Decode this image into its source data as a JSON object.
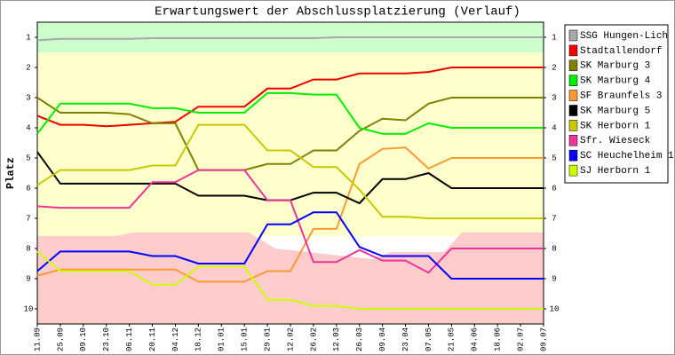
{
  "chart_data": {
    "type": "line",
    "title": "Erwartungswert der Abschlussplatzierung (Verlauf)",
    "y_label": "Platz",
    "categories": [
      "11.09",
      "25.09",
      "09.10",
      "23.10",
      "06.11",
      "20.11",
      "04.12",
      "18.12",
      "01.01",
      "15.01",
      "29.01",
      "12.02",
      "26.02",
      "12.03",
      "26.03",
      "09.04",
      "23.04",
      "07.05",
      "21.05",
      "04.06",
      "18.06",
      "02.07",
      "09.07"
    ],
    "ylim": [
      10.5,
      0.5
    ],
    "yticks": [
      1,
      2,
      3,
      4,
      5,
      6,
      7,
      8,
      9,
      10
    ],
    "series": [
      {
        "name": "SSG Hungen-Lich",
        "color": "#a8a8a8",
        "values": [
          1.1,
          1.05,
          1.05,
          1.05,
          1.05,
          1.03,
          1.03,
          1.03,
          1.03,
          1.03,
          1.03,
          1.03,
          1.03,
          1.0,
          1.0,
          1.0,
          1.0,
          1.0,
          1.0,
          1.0,
          1.0,
          1.0,
          1.0
        ]
      },
      {
        "name": "Stadtallendorf",
        "color": "#ee0000",
        "values": [
          3.6,
          3.9,
          3.9,
          3.95,
          3.9,
          3.85,
          3.8,
          3.3,
          3.3,
          3.3,
          2.7,
          2.7,
          2.4,
          2.4,
          2.2,
          2.2,
          2.2,
          2.15,
          2.0,
          2.0,
          2.0,
          2.0,
          2.0
        ]
      },
      {
        "name": "SK Marburg 3",
        "color": "#808000",
        "values": [
          3.0,
          3.5,
          3.5,
          3.5,
          3.55,
          3.85,
          3.85,
          5.4,
          5.4,
          5.4,
          5.2,
          5.2,
          4.75,
          4.75,
          4.1,
          3.7,
          3.75,
          3.2,
          3.0,
          3.0,
          3.0,
          3.0,
          3.0
        ]
      },
      {
        "name": "SK Marburg 4",
        "color": "#00ee00",
        "values": [
          4.2,
          3.2,
          3.2,
          3.2,
          3.2,
          3.35,
          3.35,
          3.5,
          3.5,
          3.5,
          2.85,
          2.85,
          2.9,
          2.9,
          4.0,
          4.2,
          4.2,
          3.85,
          4.0,
          4.0,
          4.0,
          4.0,
          4.0
        ]
      },
      {
        "name": "SF Braunfels 3",
        "color": "#ff9933",
        "values": [
          8.9,
          8.7,
          8.7,
          8.7,
          8.7,
          8.7,
          8.7,
          9.1,
          9.1,
          9.1,
          8.75,
          8.75,
          7.35,
          7.35,
          5.2,
          4.7,
          4.65,
          5.35,
          5.0,
          5.0,
          5.0,
          5.0,
          5.0
        ]
      },
      {
        "name": "SK Marburg 5",
        "color": "#000000",
        "values": [
          4.8,
          5.85,
          5.85,
          5.85,
          5.85,
          5.85,
          5.85,
          6.25,
          6.25,
          6.25,
          6.4,
          6.4,
          6.15,
          6.15,
          6.5,
          5.7,
          5.7,
          5.5,
          6.0,
          6.0,
          6.0,
          6.0,
          6.0
        ]
      },
      {
        "name": "SK Herborn 1",
        "color": "#c8c800",
        "values": [
          5.9,
          5.4,
          5.4,
          5.4,
          5.4,
          5.25,
          5.25,
          3.9,
          3.9,
          3.9,
          4.75,
          4.75,
          5.3,
          5.3,
          6.05,
          6.95,
          6.95,
          7.0,
          7.0,
          7.0,
          7.0,
          7.0,
          7.0
        ]
      },
      {
        "name": "Sfr. Wieseck",
        "color": "#ee3399",
        "values": [
          6.6,
          6.65,
          6.65,
          6.65,
          6.65,
          5.8,
          5.8,
          5.4,
          5.4,
          5.4,
          6.4,
          6.4,
          8.45,
          8.45,
          8.05,
          8.4,
          8.4,
          8.8,
          8.0,
          8.0,
          8.0,
          8.0,
          8.0
        ]
      },
      {
        "name": "SC Heuchelheim 1",
        "color": "#0000ff",
        "values": [
          8.75,
          8.1,
          8.1,
          8.1,
          8.1,
          8.25,
          8.25,
          8.5,
          8.5,
          8.5,
          7.2,
          7.2,
          6.8,
          6.8,
          7.95,
          8.25,
          8.25,
          8.25,
          9.0,
          9.0,
          9.0,
          9.0,
          9.0
        ]
      },
      {
        "name": "SJ Herborn 1",
        "color": "#ccff00",
        "values": [
          8.1,
          8.75,
          8.75,
          8.75,
          8.75,
          9.2,
          9.2,
          8.6,
          8.6,
          8.6,
          9.7,
          9.7,
          9.9,
          9.9,
          10.0,
          10.0,
          10.0,
          10.0,
          10.0,
          10.0,
          10.0,
          10.0,
          10.0
        ]
      }
    ]
  }
}
